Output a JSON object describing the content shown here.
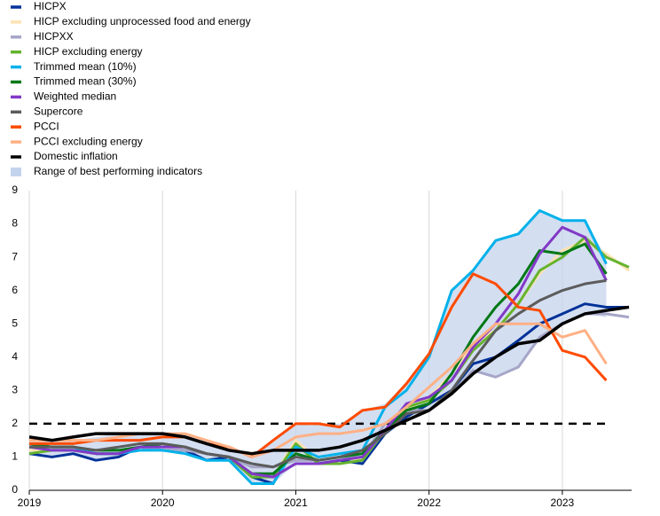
{
  "chart_data": {
    "type": "line",
    "x": [
      2019,
      2019.17,
      2019.33,
      2019.5,
      2019.67,
      2019.83,
      2020,
      2020.17,
      2020.33,
      2020.5,
      2020.67,
      2020.83,
      2021,
      2021.17,
      2021.33,
      2021.5,
      2021.67,
      2021.83,
      2022,
      2022.17,
      2022.33,
      2022.5,
      2022.67,
      2022.83,
      2023,
      2023.17,
      2023.33,
      2023.5
    ],
    "xlim": [
      2019,
      2023.52
    ],
    "xticks": [
      2019,
      2020,
      2021,
      2022,
      2023
    ],
    "ylim": [
      0,
      9
    ],
    "yticks": [
      0,
      1,
      2,
      3,
      4,
      5,
      6,
      7,
      8,
      9
    ],
    "grid": "x",
    "series": [
      {
        "name": "HICPX",
        "color": "#003299",
        "values": [
          1.1,
          1.0,
          1.1,
          0.9,
          1.0,
          1.3,
          1.2,
          1.2,
          0.9,
          1.0,
          0.4,
          0.2,
          1.4,
          0.8,
          0.9,
          0.8,
          1.7,
          2.2,
          2.6,
          3.0,
          3.8,
          4.0,
          4.5,
          5.0,
          5.3,
          5.6,
          5.5,
          5.5
        ]
      },
      {
        "name": "HICP excluding unprocessed food and energy",
        "color": "#fde2b4",
        "values": [
          1.2,
          1.2,
          1.2,
          1.1,
          1.1,
          1.3,
          1.3,
          1.3,
          1.1,
          1.0,
          0.5,
          0.4,
          1.5,
          0.9,
          1.0,
          0.9,
          1.8,
          2.4,
          2.8,
          3.5,
          4.4,
          4.8,
          5.6,
          6.5,
          7.2,
          7.5,
          7.1,
          6.6
        ]
      },
      {
        "name": "HICPXX",
        "color": "#a6a6c8",
        "values": [
          1.3,
          1.3,
          1.3,
          1.2,
          1.2,
          1.3,
          1.2,
          1.2,
          1.1,
          1.0,
          0.7,
          0.7,
          0.9,
          0.9,
          1.0,
          1.0,
          2.0,
          2.4,
          2.4,
          2.9,
          3.6,
          3.4,
          3.7,
          4.6,
          5.0,
          5.3,
          5.3,
          5.2
        ]
      },
      {
        "name": "HICP excluding energy",
        "color": "#65b32e",
        "values": [
          1.1,
          1.2,
          1.2,
          1.1,
          1.1,
          1.3,
          1.4,
          1.3,
          1.1,
          1.0,
          0.4,
          0.4,
          1.4,
          0.8,
          0.8,
          0.9,
          1.8,
          2.5,
          2.7,
          3.3,
          4.2,
          4.8,
          5.6,
          6.6,
          7.0,
          7.6,
          7.0,
          6.7
        ]
      },
      {
        "name": "Trimmed mean (10%)",
        "color": "#00b1ea",
        "values": [
          1.4,
          1.3,
          1.3,
          1.1,
          1.1,
          1.2,
          1.2,
          1.1,
          0.9,
          0.9,
          0.2,
          0.2,
          1.3,
          1.0,
          1.1,
          1.2,
          2.5,
          3.0,
          4.0,
          6.0,
          6.6,
          7.5,
          7.7,
          8.4,
          8.1,
          8.1,
          6.8,
          null
        ]
      },
      {
        "name": "Trimmed mean (30%)",
        "color": "#007816",
        "values": [
          1.4,
          1.3,
          1.3,
          1.2,
          1.2,
          1.3,
          1.4,
          1.3,
          1.1,
          1.0,
          0.5,
          0.5,
          1.1,
          0.9,
          1.0,
          1.1,
          1.8,
          2.4,
          2.6,
          3.5,
          4.6,
          5.5,
          6.2,
          7.2,
          7.1,
          7.4,
          6.5,
          null
        ]
      },
      {
        "name": "Weighted median",
        "color": "#8139c6",
        "values": [
          1.3,
          1.2,
          1.2,
          1.1,
          1.1,
          1.3,
          1.3,
          1.3,
          1.1,
          1.0,
          0.5,
          0.4,
          0.8,
          0.8,
          0.9,
          1.0,
          1.8,
          2.6,
          2.8,
          3.3,
          4.3,
          5.0,
          5.9,
          7.1,
          7.9,
          7.6,
          6.3,
          null
        ]
      },
      {
        "name": "Supercore",
        "color": "#5c5c5c",
        "values": [
          1.3,
          1.3,
          1.3,
          1.2,
          1.3,
          1.4,
          1.4,
          1.3,
          1.1,
          1.0,
          0.8,
          0.7,
          1.0,
          0.9,
          1.0,
          1.2,
          1.7,
          2.3,
          2.4,
          3.0,
          3.9,
          4.8,
          5.3,
          5.7,
          6.0,
          6.2,
          6.3,
          null
        ]
      },
      {
        "name": "PCCI",
        "color": "#ff4b00",
        "values": [
          1.4,
          1.4,
          1.4,
          1.5,
          1.5,
          1.5,
          1.6,
          1.6,
          1.4,
          1.3,
          1.0,
          1.5,
          2.0,
          2.0,
          1.9,
          2.4,
          2.5,
          3.2,
          4.1,
          5.5,
          6.5,
          6.2,
          5.5,
          5.4,
          4.2,
          4.0,
          3.3,
          null
        ]
      },
      {
        "name": "PCCI excluding energy",
        "color": "#ffb084",
        "values": [
          1.5,
          1.5,
          1.5,
          1.5,
          1.6,
          1.7,
          1.7,
          1.7,
          1.5,
          1.3,
          1.0,
          1.2,
          1.6,
          1.7,
          1.7,
          1.8,
          2.0,
          2.5,
          3.1,
          3.7,
          4.4,
          5.0,
          5.0,
          5.0,
          4.6,
          4.8,
          3.8,
          null
        ]
      },
      {
        "name": "Domestic inflation",
        "color": "#000000",
        "values": [
          1.6,
          1.5,
          1.6,
          1.7,
          1.7,
          1.7,
          1.7,
          1.6,
          1.4,
          1.2,
          1.1,
          1.2,
          1.2,
          1.2,
          1.3,
          1.5,
          1.8,
          2.1,
          2.4,
          2.9,
          3.5,
          4.0,
          4.4,
          4.5,
          5.0,
          5.3,
          5.4,
          5.5
        ]
      }
    ],
    "band": {
      "name": "Range of best performing indicators",
      "color": "#c4d3ec",
      "lower": [
        1.1,
        1.0,
        1.1,
        0.9,
        1.0,
        1.2,
        1.2,
        1.1,
        0.9,
        0.9,
        0.2,
        0.2,
        0.8,
        0.8,
        0.8,
        0.8,
        1.7,
        2.2,
        2.4,
        2.9,
        3.6,
        3.4,
        3.7,
        4.5,
        5.0,
        5.3,
        5.2,
        null
      ],
      "upper": [
        1.5,
        1.5,
        1.5,
        1.6,
        1.7,
        1.7,
        1.7,
        1.7,
        1.5,
        1.3,
        1.1,
        1.5,
        2.0,
        2.0,
        2.0,
        2.4,
        2.6,
        3.2,
        4.0,
        6.0,
        6.6,
        7.5,
        7.7,
        8.4,
        8.1,
        8.1,
        7.0,
        null
      ]
    },
    "reference_line": {
      "y": 2,
      "x": [
        2019,
        2023.33
      ]
    }
  }
}
